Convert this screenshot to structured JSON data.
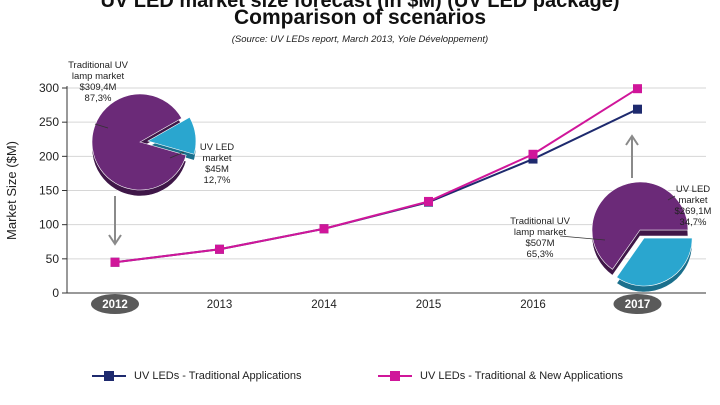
{
  "header": {
    "title_cut": "UV LED market size forecast (in $M) (UV LED package)",
    "title": "Comparison of scenarios",
    "source": "(Source: UV LEDs report, March 2013, Yole Développement)"
  },
  "colors": {
    "series_traditional": "#1e2a6e",
    "series_new": "#d0169a",
    "pie_uv_lamp": "#6b2a78",
    "pie_uv_led": "#2aa6cf",
    "highlight_pill": "#5a5a5a"
  },
  "chart_data": {
    "type": "line",
    "title": "Comparison of scenarios",
    "xlabel": "",
    "ylabel": "Market Size ($M)",
    "ylim": [
      0,
      300
    ],
    "yticks": [
      0,
      50,
      100,
      150,
      200,
      250,
      300
    ],
    "grid": true,
    "categories": [
      "2012",
      "2013",
      "2014",
      "2015",
      "2016",
      "2017"
    ],
    "highlighted_categories": [
      "2012",
      "2017"
    ],
    "series": [
      {
        "name": "UV LEDs - Traditional Applications",
        "color": "#1e2a6e",
        "values": [
          45,
          64,
          94,
          133,
          196,
          269
        ]
      },
      {
        "name": "UV LEDs - Traditional & New Applications",
        "color": "#d0169a",
        "values": [
          45,
          64,
          94,
          134,
          203,
          299
        ]
      }
    ],
    "legend_position": "bottom"
  },
  "pies": [
    {
      "year": "2012",
      "slices": [
        {
          "label_lines": [
            "Traditional UV",
            "lamp market",
            "$309,4M",
            "87,3%"
          ],
          "percent": 87.3
        },
        {
          "label_lines": [
            "UV LED",
            "market",
            "$45M",
            "12,7%"
          ],
          "percent": 12.7
        }
      ]
    },
    {
      "year": "2017",
      "slices": [
        {
          "label_lines": [
            "Traditional UV",
            "lamp market",
            "$507M",
            "65,3%"
          ],
          "percent": 65.3
        },
        {
          "label_lines": [
            "UV LED",
            "market",
            "$269,1M",
            "34,7%"
          ],
          "percent": 34.7
        }
      ]
    }
  ]
}
